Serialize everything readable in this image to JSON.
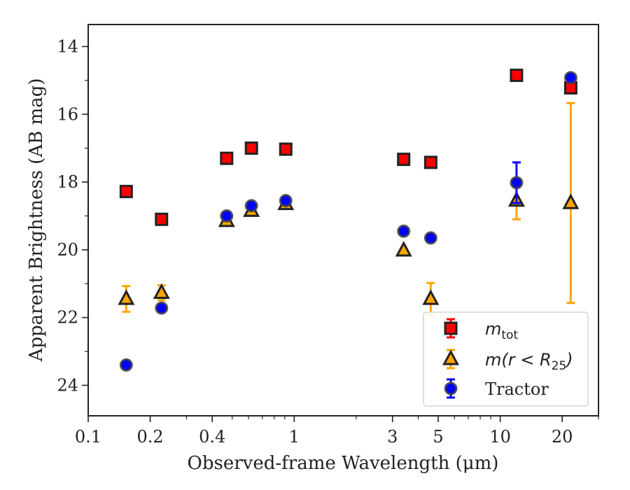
{
  "chart_data": {
    "type": "scatter",
    "xlabel": "Observed-frame Wavelength (μm)",
    "ylabel": "Apparent Brightness (AB mag)",
    "x_scale": "log",
    "xlim": [
      0.1,
      30
    ],
    "ylim": [
      24.9,
      13.35
    ],
    "y_inverted": true,
    "x_ticks": [
      {
        "value": 0.1,
        "label": "0.1"
      },
      {
        "value": 0.2,
        "label": "0.2"
      },
      {
        "value": 0.4,
        "label": "0.4"
      },
      {
        "value": 1,
        "label": "1"
      },
      {
        "value": 3,
        "label": "3"
      },
      {
        "value": 5,
        "label": "5"
      },
      {
        "value": 10,
        "label": "10"
      },
      {
        "value": 20,
        "label": "20"
      }
    ],
    "y_ticks": [
      {
        "value": 14,
        "label": "14"
      },
      {
        "value": 16,
        "label": "16"
      },
      {
        "value": 18,
        "label": "18"
      },
      {
        "value": 20,
        "label": "20"
      },
      {
        "value": 22,
        "label": "22"
      },
      {
        "value": 24,
        "label": "24"
      }
    ],
    "grid": false,
    "legend_position": "lower-right",
    "series": [
      {
        "name": "m_tot",
        "legend_main": "m",
        "legend_sub": "tot",
        "marker": "square",
        "color": "#ff0000",
        "error_color": "#ff0000",
        "points": [
          {
            "x": 0.153,
            "y": 18.28,
            "err": 0.05
          },
          {
            "x": 0.227,
            "y": 19.1,
            "err": 0.05
          },
          {
            "x": 0.47,
            "y": 17.3,
            "err": 0.05
          },
          {
            "x": 0.62,
            "y": 17.0,
            "err": 0.05
          },
          {
            "x": 0.91,
            "y": 17.03,
            "err": 0.05
          },
          {
            "x": 3.4,
            "y": 17.33,
            "err": 0.05
          },
          {
            "x": 4.6,
            "y": 17.42,
            "err": 0.05
          },
          {
            "x": 12.0,
            "y": 14.85,
            "err": 0.05
          },
          {
            "x": 22.0,
            "y": 15.22,
            "err": 0.05
          }
        ]
      },
      {
        "name": "m(r < R_25)",
        "legend_main": "m(r < R",
        "legend_sub": "25",
        "legend_close": ")",
        "marker": "triangle",
        "color": "#ffa500",
        "error_color": "#ffa500",
        "points": [
          {
            "x": 0.153,
            "y": 21.45,
            "err": 0.38
          },
          {
            "x": 0.227,
            "y": 21.27,
            "err": 0.22
          },
          {
            "x": 0.47,
            "y": 19.15,
            "err": 0.05
          },
          {
            "x": 0.62,
            "y": 18.85,
            "err": 0.05
          },
          {
            "x": 0.91,
            "y": 18.65,
            "err": 0.05
          },
          {
            "x": 3.4,
            "y": 20.02,
            "err": 0.05
          },
          {
            "x": 4.6,
            "y": 21.45,
            "err": 0.47
          },
          {
            "x": 12.0,
            "y": 18.55,
            "err": 0.55
          },
          {
            "x": 22.0,
            "y": 18.62,
            "err": 2.95
          }
        ]
      },
      {
        "name": "Tractor",
        "legend_main": "Tractor",
        "marker": "circle",
        "color": "#0000ff",
        "error_color": "#0000ff",
        "points": [
          {
            "x": 0.153,
            "y": 23.4,
            "err": 0.05
          },
          {
            "x": 0.227,
            "y": 21.72,
            "err": 0.05
          },
          {
            "x": 0.47,
            "y": 19.0,
            "err": 0.05
          },
          {
            "x": 0.62,
            "y": 18.7,
            "err": 0.05
          },
          {
            "x": 0.91,
            "y": 18.55,
            "err": 0.05
          },
          {
            "x": 3.4,
            "y": 19.45,
            "err": 0.05
          },
          {
            "x": 4.6,
            "y": 19.65,
            "err": 0.05
          },
          {
            "x": 12.0,
            "y": 18.02,
            "err": 0.6
          },
          {
            "x": 22.0,
            "y": 14.92,
            "err": 0.05
          }
        ]
      }
    ]
  }
}
